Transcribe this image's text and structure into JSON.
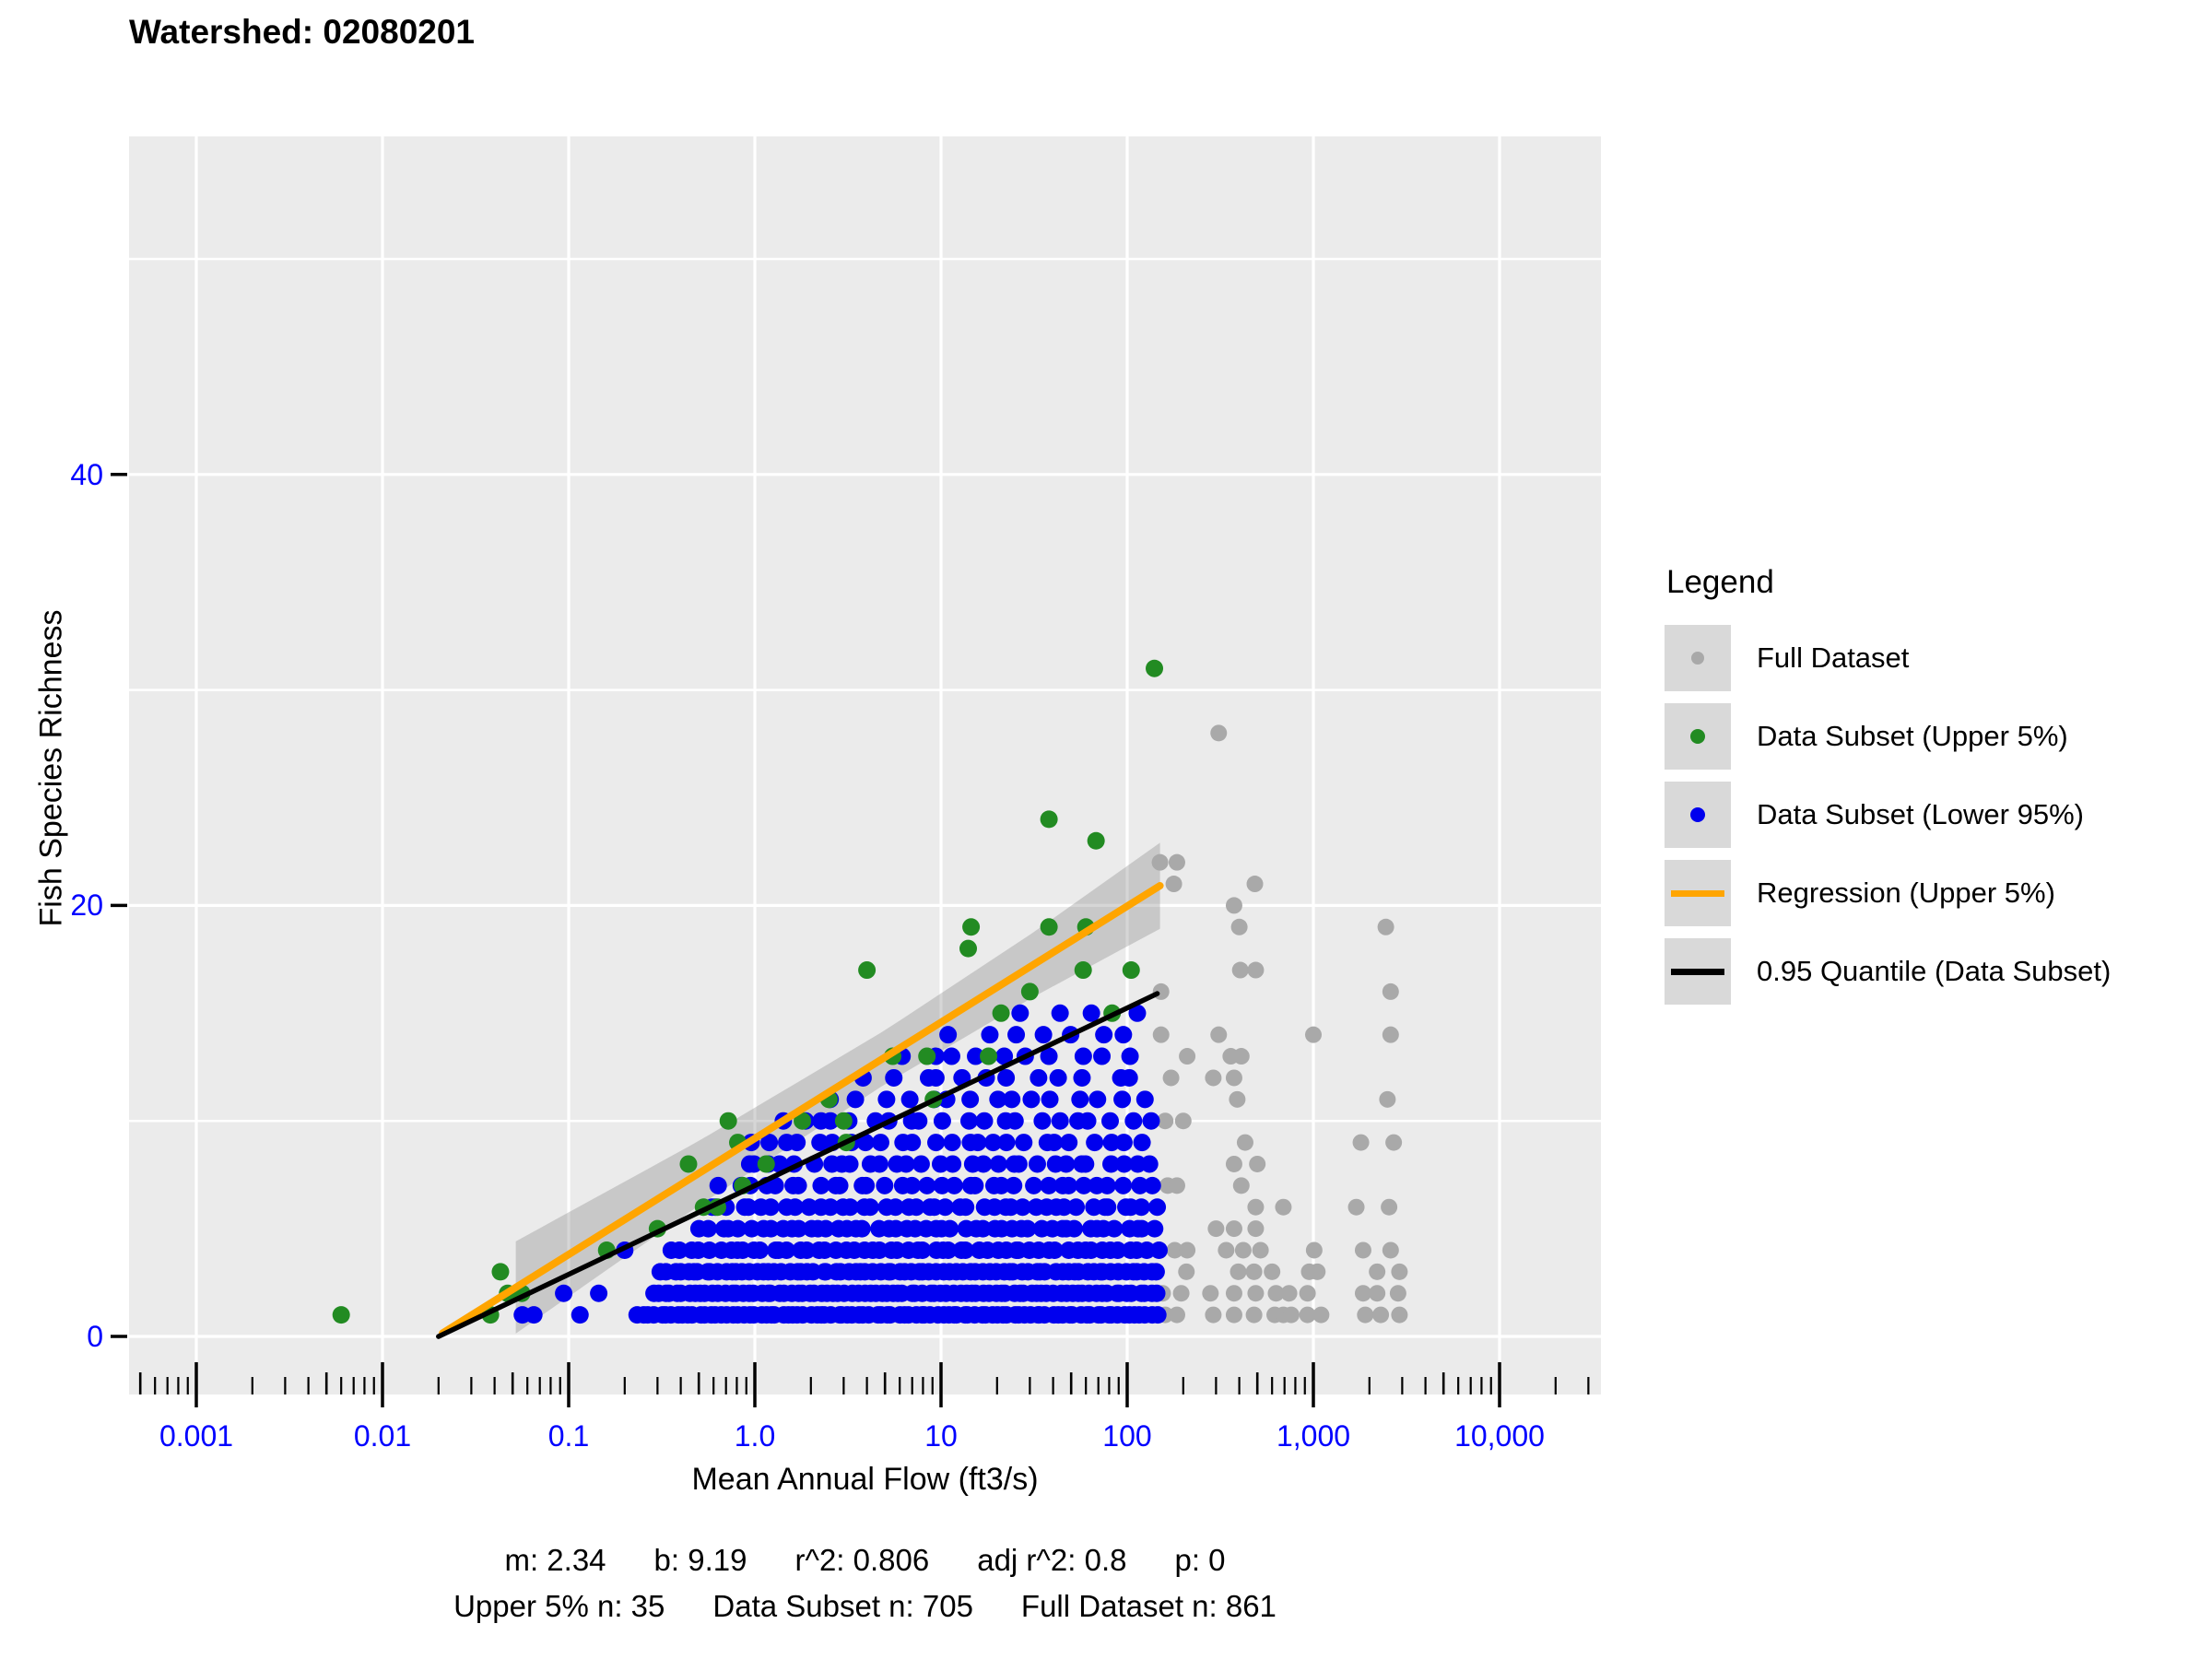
{
  "title": "Watershed: 02080201",
  "axes": {
    "x_title": "Mean Annual Flow (ft3/s)",
    "y_title": "Fish Species Richness",
    "tick_label_color": "#0000FF"
  },
  "legend": {
    "title": "Legend",
    "items": [
      {
        "label": "Full Dataset",
        "glyph": "dot",
        "color": "#A9A9A9",
        "size": 14
      },
      {
        "label": "Data Subset (Upper 5%)",
        "glyph": "dot",
        "color": "#228B22",
        "size": 16
      },
      {
        "label": "Data Subset (Lower 95%)",
        "glyph": "dot",
        "color": "#0000EE",
        "size": 16
      },
      {
        "label": "Regression (Upper 5%)",
        "glyph": "line",
        "color": "#FFA500"
      },
      {
        "label": "0.95 Quantile (Data Subset)",
        "glyph": "line",
        "color": "#000000"
      }
    ]
  },
  "stats_line1": [
    "m: 2.34",
    "b: 9.19",
    "r^2: 0.806",
    "adj r^2: 0.8",
    "p: 0"
  ],
  "stats_line2": [
    "Upper 5% n: 35",
    "Data Subset n: 705",
    "Full Dataset n: 861"
  ],
  "colors": {
    "panel_bg": "#EBEBEB",
    "gridline": "#FFFFFF",
    "tick": "#000000",
    "full_dataset": "#A9A9A9",
    "subset_upper": "#228B22",
    "subset_lower": "#0000EE",
    "regression": "#FFA500",
    "quantile": "#000000",
    "ci_band": "rgba(130,130,130,0.33)"
  },
  "chart_data": {
    "type": "scatter",
    "title": "Watershed: 02080201",
    "xlabel": "Mean Annual Flow (ft3/s)",
    "ylabel": "Fish Species Richness",
    "x_scale": "log10",
    "x_domain_log10": [
      -3.36,
      4.54
    ],
    "y_domain": [
      -2.7,
      55.7
    ],
    "grid": "white-on-gray",
    "legend_position": "right",
    "x_major_ticks": [
      {
        "log10": -3,
        "label": "0.001"
      },
      {
        "log10": -2,
        "label": "0.01"
      },
      {
        "log10": -1,
        "label": "0.1"
      },
      {
        "log10": 0,
        "label": "1.0"
      },
      {
        "log10": 1,
        "label": "10"
      },
      {
        "log10": 2,
        "label": "100"
      },
      {
        "log10": 3,
        "label": "1,000"
      },
      {
        "log10": 4,
        "label": "10,000"
      }
    ],
    "y_major_ticks": [
      {
        "value": 0,
        "label": "0"
      },
      {
        "value": 20,
        "label": "20"
      },
      {
        "value": 40,
        "label": "40"
      }
    ],
    "y_minor_gridlines": [
      10,
      30,
      50
    ],
    "series": {
      "full_dataset": {
        "name": "Full Dataset",
        "points": [
          [
            310,
            28
          ],
          [
            150,
            22
          ],
          [
            185,
            22
          ],
          [
            178,
            21
          ],
          [
            485,
            21
          ],
          [
            375,
            20
          ],
          [
            400,
            19
          ],
          [
            2450,
            19
          ],
          [
            405,
            17
          ],
          [
            490,
            17
          ],
          [
            152,
            16
          ],
          [
            2600,
            16
          ],
          [
            152,
            14
          ],
          [
            310,
            14
          ],
          [
            1000,
            14
          ],
          [
            2600,
            14
          ],
          [
            210,
            13
          ],
          [
            360,
            13
          ],
          [
            410,
            13
          ],
          [
            172,
            12
          ],
          [
            290,
            12
          ],
          [
            375,
            12
          ],
          [
            390,
            11
          ],
          [
            2500,
            11
          ],
          [
            160,
            10
          ],
          [
            200,
            10
          ],
          [
            430,
            9
          ],
          [
            1800,
            9
          ],
          [
            2700,
            9
          ],
          [
            375,
            8
          ],
          [
            500,
            8
          ],
          [
            165,
            7
          ],
          [
            185,
            7
          ],
          [
            410,
            7
          ],
          [
            490,
            6
          ],
          [
            690,
            6
          ],
          [
            1700,
            6
          ],
          [
            2550,
            6
          ],
          [
            300,
            5
          ],
          [
            375,
            5
          ],
          [
            490,
            5
          ],
          [
            180,
            4
          ],
          [
            210,
            4
          ],
          [
            340,
            4
          ],
          [
            420,
            4
          ],
          [
            520,
            4
          ],
          [
            1010,
            4
          ],
          [
            1850,
            4
          ],
          [
            2600,
            4
          ],
          [
            208,
            3
          ],
          [
            395,
            3
          ],
          [
            480,
            3
          ],
          [
            600,
            3
          ],
          [
            950,
            3
          ],
          [
            1050,
            3
          ],
          [
            2200,
            3
          ],
          [
            2900,
            3
          ],
          [
            155,
            2
          ],
          [
            195,
            2
          ],
          [
            280,
            2
          ],
          [
            375,
            2
          ],
          [
            490,
            2
          ],
          [
            630,
            2
          ],
          [
            740,
            2
          ],
          [
            930,
            2
          ],
          [
            1850,
            2
          ],
          [
            2200,
            2
          ],
          [
            2850,
            2
          ],
          [
            160,
            1
          ],
          [
            185,
            1
          ],
          [
            290,
            1
          ],
          [
            375,
            1
          ],
          [
            480,
            1
          ],
          [
            620,
            1
          ],
          [
            690,
            1
          ],
          [
            760,
            1
          ],
          [
            930,
            1
          ],
          [
            1100,
            1
          ],
          [
            1900,
            1
          ],
          [
            2300,
            1
          ],
          [
            2900,
            1
          ]
        ]
      },
      "subset_upper": {
        "name": "Data Subset (Upper 5%)",
        "points": [
          [
            0.006,
            1
          ],
          [
            0.038,
            1
          ],
          [
            0.047,
            2
          ],
          [
            0.056,
            2
          ],
          [
            0.043,
            3
          ],
          [
            0.16,
            4
          ],
          [
            0.3,
            5
          ],
          [
            0.53,
            6
          ],
          [
            0.63,
            6
          ],
          [
            0.86,
            7
          ],
          [
            0.44,
            8
          ],
          [
            1.15,
            8
          ],
          [
            0.81,
            9
          ],
          [
            3.1,
            9
          ],
          [
            0.72,
            10
          ],
          [
            1.8,
            10
          ],
          [
            3.0,
            10
          ],
          [
            2.5,
            11
          ],
          [
            9.1,
            11
          ],
          [
            5.5,
            13
          ],
          [
            8.4,
            13
          ],
          [
            18,
            13
          ],
          [
            21,
            15
          ],
          [
            83,
            15
          ],
          [
            30,
            16
          ],
          [
            4.0,
            17
          ],
          [
            58,
            17
          ],
          [
            105,
            17
          ],
          [
            14,
            18
          ],
          [
            14.5,
            19
          ],
          [
            38,
            19
          ],
          [
            60,
            19
          ],
          [
            68,
            23
          ],
          [
            38,
            24
          ],
          [
            140,
            31
          ]
        ]
      },
      "subset_lower": {
        "name": "Data Subset (Lower 95%)",
        "note": "richness rows; segments are [x_min, x_max, n_points] on a log10 axis (estimated density)",
        "rows": [
          {
            "richness": 1,
            "segments": [
              [
                0.05,
                0.07,
                2
              ],
              [
                0.115,
                0.115,
                1
              ],
              [
                0.23,
                150,
                95
              ]
            ]
          },
          {
            "richness": 2,
            "segments": [
              [
                0.094,
                0.094,
                1
              ],
              [
                0.145,
                0.145,
                1
              ],
              [
                0.27,
                150,
                85
              ]
            ]
          },
          {
            "richness": 3,
            "segments": [
              [
                0.3,
                150,
                78
              ]
            ]
          },
          {
            "richness": 4,
            "segments": [
              [
                0.2,
                0.2,
                1
              ],
              [
                0.35,
                150,
                55
              ]
            ]
          },
          {
            "richness": 5,
            "segments": [
              [
                0.49,
                150,
                48
              ]
            ]
          },
          {
            "richness": 6,
            "segments": [
              [
                0.53,
                150,
                42
              ]
            ]
          },
          {
            "richness": 7,
            "segments": [
              [
                0.62,
                150,
                33
              ]
            ]
          },
          {
            "richness": 8,
            "segments": [
              [
                0.8,
                140,
                30
              ]
            ]
          },
          {
            "richness": 9,
            "segments": [
              [
                0.9,
                130,
                25
              ]
            ]
          },
          {
            "richness": 10,
            "segments": [
              [
                1.2,
                145,
                21
              ]
            ]
          },
          {
            "richness": 11,
            "segments": [
              [
                2.5,
                130,
                15
              ]
            ]
          },
          {
            "richness": 12,
            "segments": [
              [
                3.5,
                135,
                12
              ]
            ]
          },
          {
            "richness": 13,
            "segments": [
              [
                5,
                135,
                10
              ]
            ]
          },
          {
            "richness": 14,
            "segments": [
              [
                9,
                130,
                7
              ]
            ]
          },
          {
            "richness": 15,
            "segments": [
              [
                25,
                140,
                4
              ]
            ]
          }
        ]
      },
      "regression": {
        "name": "Regression (Upper 5%)",
        "model": "richness = 2.34 * ln(flow) + 9.19",
        "slope_ln": 2.34,
        "intercept": 9.19,
        "x_start": 0.021,
        "x_end": 150,
        "ci_band": {
          "x_start": 0.052,
          "x_end": 150,
          "half_width_anchors": [
            [
              -1.3,
              2.15
            ],
            [
              -0.3,
              1.5
            ],
            [
              0.7,
              1.25
            ],
            [
              1.5,
              1.5
            ],
            [
              2.18,
              2.0
            ]
          ]
        }
      },
      "quantile": {
        "name": "0.95 Quantile (Data Subset)",
        "model": "richness = 1.79 * ln(flow) + 7.0",
        "slope_ln": 1.79,
        "intercept": 7.0,
        "x_start": 0.02,
        "x_end": 145
      }
    },
    "stats": {
      "m": "2.34",
      "b": "9.19",
      "r2": "0.806",
      "adj_r2": "0.8",
      "p": "0",
      "upper_5_n": "35",
      "data_subset_n": "705",
      "full_dataset_n": "861"
    }
  }
}
